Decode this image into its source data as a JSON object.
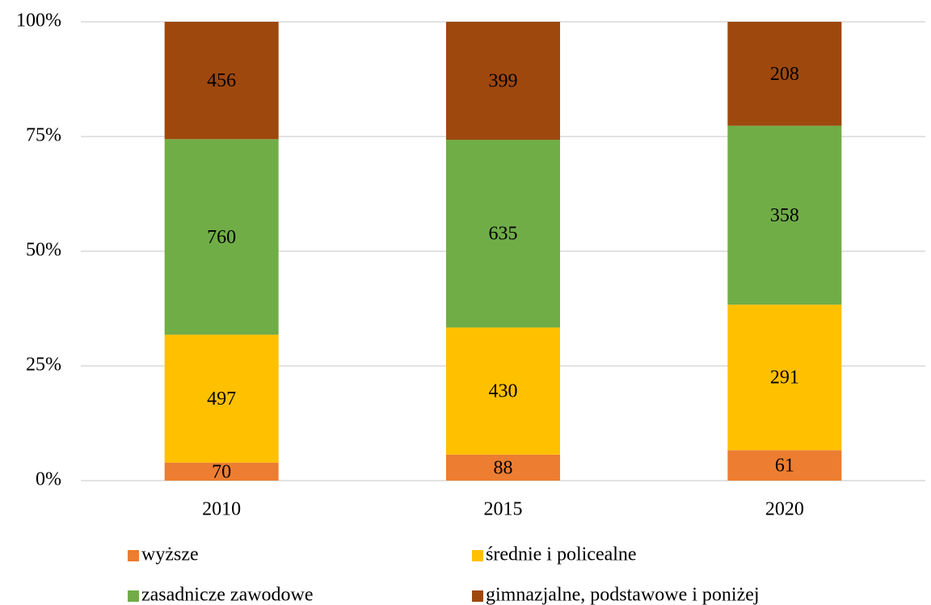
{
  "chart_data": {
    "type": "bar",
    "stacked": "percent",
    "categories": [
      "2010",
      "2015",
      "2020"
    ],
    "series": [
      {
        "name": "wyższe",
        "color": "#ED7D31",
        "values": [
          70,
          88,
          61
        ]
      },
      {
        "name": "średnie i policealne",
        "color": "#FFC000",
        "values": [
          497,
          430,
          291
        ]
      },
      {
        "name": "zasadnicze zawodowe",
        "color": "#70AD47",
        "values": [
          760,
          635,
          358
        ]
      },
      {
        "name": "gimnazjalne, podstawowe i poniżej",
        "color": "#9E480E",
        "values": [
          456,
          399,
          208
        ]
      }
    ],
    "ylim": [
      0,
      100
    ],
    "yticks": [
      {
        "value": 0,
        "label": "0%"
      },
      {
        "value": 25,
        "label": "25%"
      },
      {
        "value": 50,
        "label": "50%"
      },
      {
        "value": 75,
        "label": "75%"
      },
      {
        "value": 100,
        "label": "100%"
      }
    ],
    "grid": true,
    "legend": "bottom"
  }
}
